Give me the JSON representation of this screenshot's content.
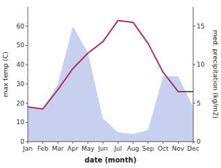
{
  "chart_data": {
    "type": "line",
    "categories": [
      "Jan",
      "Feb",
      "Mar",
      "Apr",
      "May",
      "Jun",
      "Jul",
      "Aug",
      "Sep",
      "Oct",
      "Nov",
      "Dec"
    ],
    "series": [
      {
        "type": "area",
        "color": "#c8d0f0",
        "axis": "y2",
        "values": [
          4.5,
          4.2,
          7.5,
          15.0,
          11.5,
          3.0,
          1.2,
          1.0,
          1.5,
          8.5,
          8.5,
          4.5
        ]
      },
      {
        "type": "line",
        "color": "#b03060",
        "values": [
          18,
          17,
          27,
          38,
          46,
          52,
          63,
          62,
          51,
          36,
          26,
          26
        ]
      }
    ],
    "xlabel": "date (month)",
    "ylabel": "max temp (C)",
    "y2label": "med. precipitation (kg/m2)",
    "ylim": [
      0,
      70
    ],
    "yticks": [
      0,
      10,
      20,
      30,
      40,
      50,
      60
    ],
    "y2lim": [
      0,
      17.5
    ],
    "y2ticks": [
      0,
      5,
      10,
      15
    ],
    "grid": false
  }
}
